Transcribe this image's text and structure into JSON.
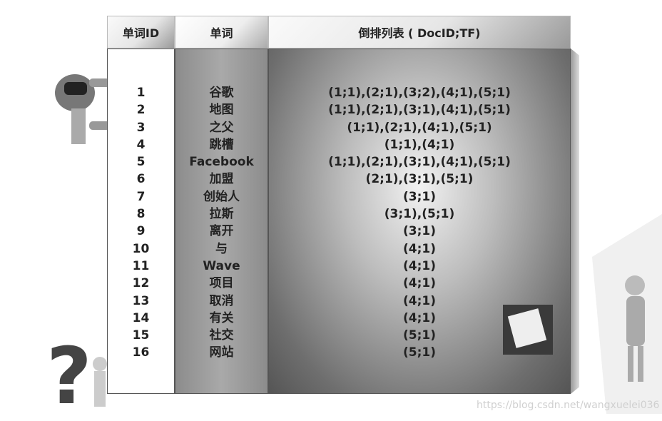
{
  "table": {
    "headers": [
      "单词ID",
      "单词",
      "倒排列表 ( DocID;TF)"
    ],
    "rows": [
      {
        "id": "1",
        "word": "谷歌",
        "postings": "(1;1),(2;1),(3;2),(4;1),(5;1)"
      },
      {
        "id": "2",
        "word": "地图",
        "postings": "(1;1),(2;1),(3;1),(4;1),(5;1)"
      },
      {
        "id": "3",
        "word": "之父",
        "postings": "(1;1),(2;1),(4;1),(5;1)"
      },
      {
        "id": "4",
        "word": "跳槽",
        "postings": "(1;1),(4;1)"
      },
      {
        "id": "5",
        "word": "Facebook",
        "postings": "(1;1),(2;1),(3;1),(4;1),(5;1)"
      },
      {
        "id": "6",
        "word": "加盟",
        "postings": "(2;1),(3;1),(5;1)"
      },
      {
        "id": "7",
        "word": "创始人",
        "postings": "(3;1)"
      },
      {
        "id": "8",
        "word": "拉斯",
        "postings": "(3;1),(5;1)"
      },
      {
        "id": "9",
        "word": "离开",
        "postings": "(3;1)"
      },
      {
        "id": "10",
        "word": "与",
        "postings": "(4;1)"
      },
      {
        "id": "11",
        "word": "Wave",
        "postings": "(4;1)"
      },
      {
        "id": "12",
        "word": "项目",
        "postings": "(4;1)"
      },
      {
        "id": "13",
        "word": "取消",
        "postings": "(4;1)"
      },
      {
        "id": "14",
        "word": "有关",
        "postings": "(4;1)"
      },
      {
        "id": "15",
        "word": "社交",
        "postings": "(5;1)"
      },
      {
        "id": "16",
        "word": "网站",
        "postings": "(5;1)"
      }
    ]
  },
  "watermark": "https://blog.csdn.net/wangxuelei036"
}
